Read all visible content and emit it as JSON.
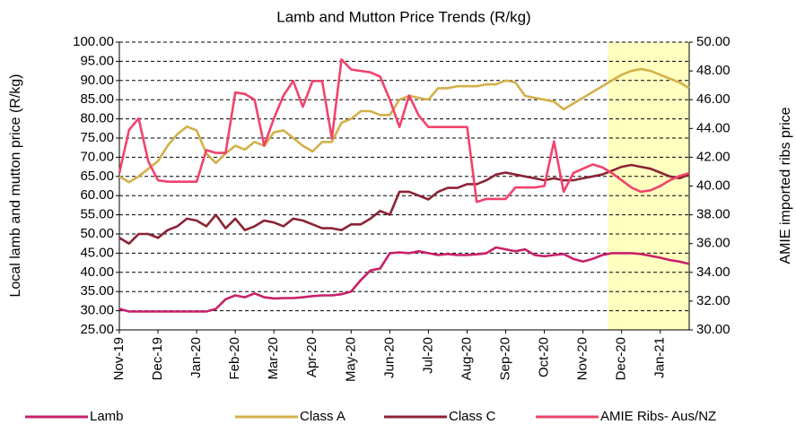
{
  "chart_data": {
    "type": "line",
    "title": "Lamb and Mutton Price Trends (R/kg)",
    "y_label": "Local lamb and mutton price (R/kg)",
    "y2_label": "AMIE imported ribs price",
    "categories": [
      "Nov-19",
      null,
      null,
      null,
      "Dec-19",
      null,
      null,
      null,
      "Jan-20",
      null,
      null,
      null,
      "Feb-20",
      null,
      null,
      null,
      "Mar-20",
      null,
      null,
      null,
      "Apr-20",
      null,
      null,
      null,
      "May-20",
      null,
      null,
      null,
      "Jun-20",
      null,
      null,
      null,
      "Jul-20",
      null,
      null,
      null,
      "Aug-20",
      null,
      null,
      null,
      "Sep-20",
      null,
      null,
      null,
      "Oct-20",
      null,
      null,
      null,
      "Nov-20",
      null,
      null,
      null,
      "Dec-20",
      null,
      null,
      null,
      "Jan-21",
      null,
      null,
      null
    ],
    "ylim": [
      25,
      100
    ],
    "yticks": [
      {
        "value": 25,
        "label": "25.00"
      },
      {
        "value": 30,
        "label": "30.00"
      },
      {
        "value": 35,
        "label": "35.00"
      },
      {
        "value": 40,
        "label": "40.00"
      },
      {
        "value": 45,
        "label": "45.00"
      },
      {
        "value": 50,
        "label": "50.00"
      },
      {
        "value": 55,
        "label": "55.00"
      },
      {
        "value": 60,
        "label": "60.00"
      },
      {
        "value": 65,
        "label": "65.00"
      },
      {
        "value": 70,
        "label": "70.00"
      },
      {
        "value": 75,
        "label": "75.00"
      },
      {
        "value": 80,
        "label": "80.00"
      },
      {
        "value": 85,
        "label": "85.00"
      },
      {
        "value": 90,
        "label": "90.00"
      },
      {
        "value": 95,
        "label": "95.00"
      },
      {
        "value": 100,
        "label": "100.00"
      }
    ],
    "y2lim": [
      30,
      50
    ],
    "y2ticks": [
      {
        "value": 30,
        "label": "30.00"
      },
      {
        "value": 32,
        "label": "32.00"
      },
      {
        "value": 34,
        "label": "34.00"
      },
      {
        "value": 36,
        "label": "36.00"
      },
      {
        "value": 38,
        "label": "38.00"
      },
      {
        "value": 40,
        "label": "40.00"
      },
      {
        "value": 42,
        "label": "42.00"
      },
      {
        "value": 44,
        "label": "44.00"
      },
      {
        "value": 46,
        "label": "46.00"
      },
      {
        "value": 48,
        "label": "48.00"
      },
      {
        "value": 50,
        "label": "50.00"
      }
    ],
    "grid": true,
    "legend": "bottom",
    "shaded_range": {
      "from": 50.6,
      "to": 59,
      "color": "#ffffc0"
    },
    "series": [
      {
        "name": "Lamb",
        "color": "#c8206a",
        "values": [
          30.5,
          29.8,
          29.8,
          29.8,
          29.8,
          29.8,
          29.8,
          29.8,
          29.8,
          29.8,
          30.5,
          33,
          34,
          33.5,
          34.5,
          33.5,
          33.2,
          33.3,
          33.3,
          33.5,
          33.8,
          34,
          34,
          34.3,
          35,
          38,
          40.5,
          41,
          45,
          45.2,
          45,
          45.5,
          45,
          44.5,
          44.8,
          44.5,
          44.5,
          44.7,
          45,
          46.5,
          46,
          45.5,
          46,
          44.5,
          44.2,
          44.5,
          44.8,
          43.5,
          42.8,
          43.5,
          44.5,
          45,
          45,
          45,
          44.8,
          44.3,
          43.8,
          43.2,
          42.8,
          42.2
        ]
      },
      {
        "name": "Class A",
        "color": "#d4b04a",
        "values": [
          65,
          63.5,
          65,
          67,
          69,
          73,
          76,
          78,
          77,
          71,
          68.5,
          71,
          73,
          72,
          74,
          73,
          76.5,
          77,
          75,
          73,
          71.5,
          74,
          74,
          79,
          80,
          82,
          82,
          81,
          81,
          85,
          86,
          85.5,
          85,
          88,
          88,
          88.5,
          88.5,
          88.5,
          89,
          89,
          90,
          89.5,
          86,
          85.5,
          85,
          84.5,
          82.5,
          84,
          85.5,
          87,
          88.5,
          90,
          91.5,
          92.5,
          93,
          92.5,
          91.5,
          90.5,
          89.5,
          88
        ]
      },
      {
        "name": "Class C",
        "color": "#8b2335",
        "values": [
          49,
          47.5,
          50,
          50,
          49,
          51,
          52,
          54,
          53.5,
          52,
          55,
          51.5,
          54,
          51,
          52,
          53.5,
          53,
          52,
          54,
          53.5,
          52.5,
          51.5,
          51.5,
          51,
          52.5,
          52.5,
          54,
          56,
          55,
          61,
          61,
          60,
          59,
          61,
          62,
          62,
          63,
          63,
          64,
          65.5,
          66,
          65.5,
          65,
          64.5,
          64,
          64.5,
          64,
          64,
          64.5,
          65,
          65.5,
          66.5,
          67.5,
          68,
          67.5,
          67,
          66,
          65,
          64.5,
          65.5
        ]
      },
      {
        "name": "AMIE Ribs- Aus/NZ",
        "color": "#f0436c",
        "axis": "y2",
        "values": [
          40.9,
          43.9,
          44.7,
          41.7,
          40.4,
          40.3,
          40.3,
          40.3,
          40.3,
          42.5,
          42.3,
          42.3,
          46.5,
          46.4,
          46,
          42.8,
          44.7,
          46.3,
          47.3,
          45.5,
          47.3,
          47.3,
          43.3,
          48.8,
          48.1,
          48,
          47.9,
          47.6,
          46,
          44.1,
          46.3,
          44.9,
          44.1,
          44.1,
          44.1,
          44.1,
          44.1,
          38.9,
          39.1,
          39.1,
          39.1,
          39.9,
          39.9,
          39.9,
          40,
          43.1,
          39.6,
          40.9,
          41.2,
          41.5,
          41.3,
          40.9,
          40.4,
          39.9,
          39.6,
          39.7,
          40,
          40.4,
          40.7,
          40.9
        ]
      }
    ]
  }
}
